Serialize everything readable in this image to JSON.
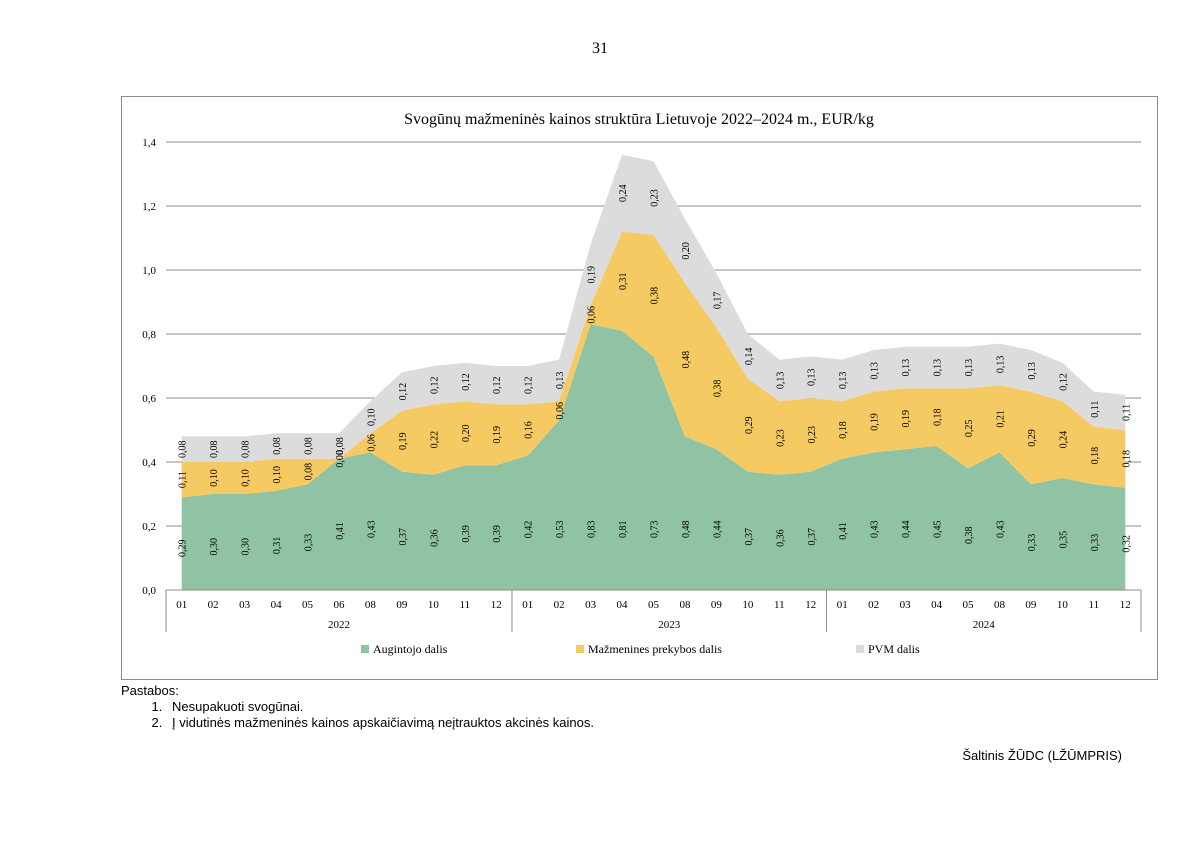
{
  "page_number": "31",
  "notes": {
    "heading": "Pastabos:",
    "items": [
      "Nesupakuoti svogūnai.",
      "Į vidutinės mažmeninės kainos apskaičiavimą neįtrauktos akcinės kainos."
    ]
  },
  "source": "Šaltinis ŽŪDC (LŽŪMPRIS)",
  "chart_data": {
    "type": "area",
    "stacked": true,
    "title": "Svogūnų mažmeninės kainos struktūra Lietuvoje 2022–2024 m., EUR/kg",
    "xlabel": "",
    "ylabel": "",
    "ylim": [
      0,
      1.4
    ],
    "yticks": [
      "0,0",
      "0,2",
      "0,4",
      "0,6",
      "0,8",
      "1,0",
      "1,2",
      "1,4"
    ],
    "grid": true,
    "legend_position": "bottom",
    "categories": [
      "01",
      "02",
      "03",
      "04",
      "05",
      "06",
      "08",
      "09",
      "10",
      "11",
      "12",
      "01",
      "02",
      "03",
      "04",
      "05",
      "08",
      "09",
      "10",
      "11",
      "12",
      "01",
      "02",
      "03",
      "04",
      "05",
      "08",
      "09",
      "10",
      "11",
      "12"
    ],
    "years": [
      {
        "label": "2022",
        "count": 11
      },
      {
        "label": "2023",
        "count": 10
      },
      {
        "label": "2024",
        "count": 10
      }
    ],
    "series": [
      {
        "name": "Augintojo dalis",
        "color": "#8fc3a3",
        "values": [
          0.29,
          0.3,
          0.3,
          0.31,
          0.33,
          0.41,
          0.43,
          0.37,
          0.36,
          0.39,
          0.39,
          0.42,
          0.53,
          0.83,
          0.81,
          0.73,
          0.48,
          0.44,
          0.37,
          0.36,
          0.37,
          0.41,
          0.43,
          0.44,
          0.45,
          0.38,
          0.43,
          0.33,
          0.35,
          0.33,
          0.32
        ],
        "labels": [
          "0,29",
          "0,30",
          "0,30",
          "0,31",
          "0,33",
          "0,41",
          "0,43",
          "0,37",
          "0,36",
          "0,39",
          "0,39",
          "0,42",
          "0,53",
          "0,83",
          "0,81",
          "0,73",
          "0,48",
          "0,44",
          "0,37",
          "0,36",
          "0,37",
          "0,41",
          "0,43",
          "0,44",
          "0,45",
          "0,38",
          "0,43",
          "0,33",
          "0,35",
          "0,33",
          "0,32"
        ]
      },
      {
        "name": "Mažmenines prekybos dalis",
        "color": "#f5ca62",
        "values": [
          0.11,
          0.1,
          0.1,
          0.1,
          0.08,
          0.0,
          0.06,
          0.19,
          0.22,
          0.2,
          0.19,
          0.16,
          0.06,
          0.06,
          0.31,
          0.38,
          0.48,
          0.38,
          0.29,
          0.23,
          0.23,
          0.18,
          0.19,
          0.19,
          0.18,
          0.25,
          0.21,
          0.29,
          0.24,
          0.18,
          0.18
        ],
        "labels": [
          "0,11",
          "0,10",
          "0,10",
          "0,10",
          "0,08",
          "0,00",
          "0,06",
          "0,19",
          "0,22",
          "0,20",
          "0,19",
          "0,16",
          "0,06",
          "0,06",
          "0,31",
          "0,38",
          "0,48",
          "0,38",
          "0,29",
          "0,23",
          "0,23",
          "0,18",
          "0,19",
          "0,19",
          "0,18",
          "0,25",
          "0,21",
          "0,29",
          "0,24",
          "0,18",
          "0,18"
        ]
      },
      {
        "name": "PVM dalis",
        "color": "#dcdcdc",
        "values": [
          0.08,
          0.08,
          0.08,
          0.08,
          0.08,
          0.08,
          0.1,
          0.12,
          0.12,
          0.12,
          0.12,
          0.12,
          0.13,
          0.19,
          0.24,
          0.23,
          0.2,
          0.17,
          0.14,
          0.13,
          0.13,
          0.13,
          0.13,
          0.13,
          0.13,
          0.13,
          0.13,
          0.13,
          0.12,
          0.11,
          0.11
        ],
        "labels": [
          "0,08",
          "0,08",
          "0,08",
          "0,08",
          "0,08",
          "0,08",
          "0,10",
          "0,12",
          "0,12",
          "0,12",
          "0,12",
          "0,12",
          "0,13",
          "0,19",
          "0,24",
          "0,23",
          "0,20",
          "0,17",
          "0,14",
          "0,13",
          "0,13",
          "0,13",
          "0,13",
          "0,13",
          "0,13",
          "0,13",
          "0,13",
          "0,13",
          "0,12",
          "0,11",
          "0,11"
        ]
      }
    ]
  }
}
